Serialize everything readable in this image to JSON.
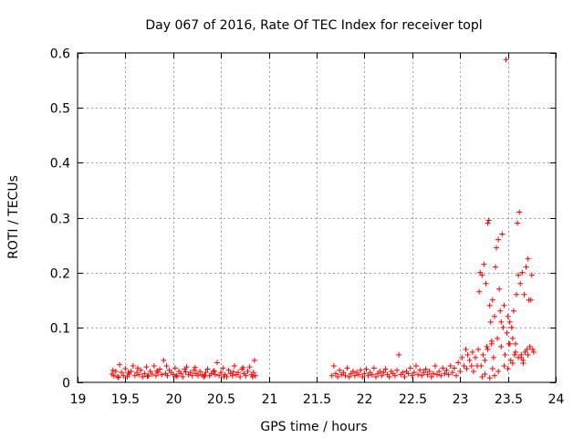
{
  "chart_data": {
    "type": "scatter",
    "title": "Day 067 of 2016, Rate Of TEC Index for receiver topl",
    "xlabel": "GPS time / hours",
    "ylabel": "ROTI / TECUs",
    "xlim": [
      19,
      24
    ],
    "ylim": [
      0,
      0.6
    ],
    "xticks": [
      19,
      19.5,
      20,
      20.5,
      21,
      21.5,
      22,
      22.5,
      23,
      23.5,
      24
    ],
    "xtick_labels": [
      "19",
      "19.5",
      "20",
      "20.5",
      "21",
      "21.5",
      "22",
      "22.5",
      "23",
      "23.5",
      "24"
    ],
    "yticks": [
      0,
      0.1,
      0.2,
      0.3,
      0.4,
      0.5,
      0.6
    ],
    "ytick_labels": [
      "0",
      "0.1",
      "0.2",
      "0.3",
      "0.4",
      "0.5",
      "0.6"
    ],
    "grid": true,
    "marker": "+",
    "color": "#ff0000",
    "series": [
      {
        "name": "ROTI",
        "points": [
          [
            19.36,
            0.015
          ],
          [
            19.38,
            0.012
          ],
          [
            19.4,
            0.02
          ],
          [
            19.42,
            0.01
          ],
          [
            19.44,
            0.032
          ],
          [
            19.46,
            0.018
          ],
          [
            19.48,
            0.012
          ],
          [
            19.5,
            0.025
          ],
          [
            19.52,
            0.01
          ],
          [
            19.54,
            0.015
          ],
          [
            19.56,
            0.02
          ],
          [
            19.58,
            0.03
          ],
          [
            19.6,
            0.012
          ],
          [
            19.62,
            0.018
          ],
          [
            19.64,
            0.014
          ],
          [
            19.66,
            0.022
          ],
          [
            19.68,
            0.01
          ],
          [
            19.7,
            0.016
          ],
          [
            19.72,
            0.028
          ],
          [
            19.74,
            0.012
          ],
          [
            19.76,
            0.02
          ],
          [
            19.78,
            0.015
          ],
          [
            19.8,
            0.03
          ],
          [
            19.82,
            0.012
          ],
          [
            19.84,
            0.018
          ],
          [
            19.86,
            0.024
          ],
          [
            19.88,
            0.014
          ],
          [
            19.9,
            0.04
          ],
          [
            19.92,
            0.016
          ],
          [
            19.94,
            0.012
          ],
          [
            19.96,
            0.022
          ],
          [
            19.98,
            0.018
          ],
          [
            20.0,
            0.014
          ],
          [
            20.02,
            0.026
          ],
          [
            20.04,
            0.012
          ],
          [
            20.06,
            0.02
          ],
          [
            20.08,
            0.016
          ],
          [
            20.1,
            0.01
          ],
          [
            20.12,
            0.024
          ],
          [
            20.14,
            0.028
          ],
          [
            20.16,
            0.014
          ],
          [
            20.18,
            0.018
          ],
          [
            20.2,
            0.012
          ],
          [
            20.22,
            0.022
          ],
          [
            20.24,
            0.016
          ],
          [
            20.26,
            0.012
          ],
          [
            20.28,
            0.02
          ],
          [
            20.3,
            0.014
          ],
          [
            20.32,
            0.01
          ],
          [
            20.34,
            0.018
          ],
          [
            20.36,
            0.024
          ],
          [
            20.38,
            0.012
          ],
          [
            20.4,
            0.016
          ],
          [
            20.42,
            0.02
          ],
          [
            20.44,
            0.014
          ],
          [
            20.46,
            0.036
          ],
          [
            20.48,
            0.012
          ],
          [
            20.5,
            0.018
          ],
          [
            20.52,
            0.026
          ],
          [
            20.54,
            0.014
          ],
          [
            20.56,
            0.01
          ],
          [
            20.58,
            0.022
          ],
          [
            20.6,
            0.016
          ],
          [
            20.62,
            0.012
          ],
          [
            20.64,
            0.03
          ],
          [
            20.66,
            0.014
          ],
          [
            20.68,
            0.018
          ],
          [
            20.7,
            0.01
          ],
          [
            20.72,
            0.024
          ],
          [
            20.74,
            0.016
          ],
          [
            20.76,
            0.012
          ],
          [
            20.78,
            0.02
          ],
          [
            20.8,
            0.028
          ],
          [
            20.82,
            0.014
          ],
          [
            20.84,
            0.018
          ],
          [
            20.85,
            0.04
          ],
          [
            20.86,
            0.012
          ],
          [
            19.37,
            0.022
          ],
          [
            19.43,
            0.009
          ],
          [
            19.53,
            0.018
          ],
          [
            19.63,
            0.026
          ],
          [
            19.73,
            0.011
          ],
          [
            19.83,
            0.021
          ],
          [
            19.93,
            0.03
          ],
          [
            20.03,
            0.011
          ],
          [
            20.13,
            0.019
          ],
          [
            20.23,
            0.027
          ],
          [
            20.33,
            0.012
          ],
          [
            20.43,
            0.021
          ],
          [
            20.53,
            0.01
          ],
          [
            20.63,
            0.019
          ],
          [
            20.73,
            0.027
          ],
          [
            20.83,
            0.01
          ],
          [
            21.66,
            0.012
          ],
          [
            21.68,
            0.03
          ],
          [
            21.7,
            0.016
          ],
          [
            21.72,
            0.01
          ],
          [
            21.74,
            0.022
          ],
          [
            21.76,
            0.014
          ],
          [
            21.78,
            0.018
          ],
          [
            21.8,
            0.012
          ],
          [
            21.82,
            0.026
          ],
          [
            21.84,
            0.01
          ],
          [
            21.86,
            0.016
          ],
          [
            21.88,
            0.02
          ],
          [
            21.9,
            0.012
          ],
          [
            21.92,
            0.018
          ],
          [
            21.94,
            0.014
          ],
          [
            21.96,
            0.022
          ],
          [
            21.98,
            0.01
          ],
          [
            22.0,
            0.016
          ],
          [
            22.02,
            0.024
          ],
          [
            22.04,
            0.012
          ],
          [
            22.06,
            0.018
          ],
          [
            22.08,
            0.014
          ],
          [
            22.1,
            0.026
          ],
          [
            22.12,
            0.01
          ],
          [
            22.14,
            0.016
          ],
          [
            22.16,
            0.02
          ],
          [
            22.18,
            0.012
          ],
          [
            22.2,
            0.018
          ],
          [
            22.22,
            0.024
          ],
          [
            22.24,
            0.014
          ],
          [
            22.26,
            0.01
          ],
          [
            22.28,
            0.02
          ],
          [
            22.3,
            0.016
          ],
          [
            22.32,
            0.012
          ],
          [
            22.34,
            0.022
          ],
          [
            22.36,
            0.05
          ],
          [
            22.38,
            0.014
          ],
          [
            22.4,
            0.018
          ],
          [
            22.42,
            0.01
          ],
          [
            22.44,
            0.02
          ],
          [
            22.46,
            0.016
          ],
          [
            22.48,
            0.026
          ],
          [
            22.5,
            0.012
          ],
          [
            22.52,
            0.018
          ],
          [
            22.54,
            0.03
          ],
          [
            22.56,
            0.014
          ],
          [
            22.58,
            0.022
          ],
          [
            22.6,
            0.012
          ],
          [
            22.62,
            0.018
          ],
          [
            22.64,
            0.024
          ],
          [
            22.66,
            0.014
          ],
          [
            22.68,
            0.02
          ],
          [
            22.7,
            0.01
          ],
          [
            22.72,
            0.016
          ],
          [
            22.74,
            0.03
          ],
          [
            22.76,
            0.014
          ],
          [
            22.78,
            0.02
          ],
          [
            22.8,
            0.012
          ],
          [
            22.82,
            0.026
          ],
          [
            22.84,
            0.016
          ],
          [
            22.86,
            0.022
          ],
          [
            22.88,
            0.014
          ],
          [
            22.9,
            0.03
          ],
          [
            22.92,
            0.018
          ],
          [
            22.94,
            0.026
          ],
          [
            22.96,
            0.012
          ],
          [
            22.98,
            0.036
          ],
          [
            23.0,
            0.02
          ],
          [
            23.02,
            0.045
          ],
          [
            23.04,
            0.03
          ],
          [
            23.06,
            0.06
          ],
          [
            23.07,
            0.025
          ],
          [
            23.08,
            0.05
          ],
          [
            23.1,
            0.04
          ],
          [
            23.12,
            0.03
          ],
          [
            23.13,
            0.055
          ],
          [
            23.14,
            0.02
          ],
          [
            23.16,
            0.045
          ],
          [
            23.18,
            0.03
          ],
          [
            23.19,
            0.06
          ],
          [
            23.2,
            0.165
          ],
          [
            23.21,
            0.2
          ],
          [
            23.22,
            0.03
          ],
          [
            23.23,
            0.195
          ],
          [
            23.24,
            0.05
          ],
          [
            23.25,
            0.215
          ],
          [
            23.26,
            0.04
          ],
          [
            23.27,
            0.18
          ],
          [
            23.28,
            0.065
          ],
          [
            23.29,
            0.29
          ],
          [
            23.3,
            0.295
          ],
          [
            23.31,
            0.14
          ],
          [
            23.32,
            0.11
          ],
          [
            23.33,
            0.07
          ],
          [
            23.34,
            0.15
          ],
          [
            23.35,
            0.045
          ],
          [
            23.36,
            0.12
          ],
          [
            23.37,
            0.21
          ],
          [
            23.38,
            0.245
          ],
          [
            23.39,
            0.08
          ],
          [
            23.4,
            0.26
          ],
          [
            23.41,
            0.17
          ],
          [
            23.42,
            0.13
          ],
          [
            23.43,
            0.11
          ],
          [
            23.44,
            0.27
          ],
          [
            23.45,
            0.1
          ],
          [
            23.46,
            0.14
          ],
          [
            23.47,
            0.05
          ],
          [
            23.48,
            0.588
          ],
          [
            23.49,
            0.09
          ],
          [
            23.5,
            0.12
          ],
          [
            23.51,
            0.07
          ],
          [
            23.52,
            0.11
          ],
          [
            23.53,
            0.04
          ],
          [
            23.54,
            0.1
          ],
          [
            23.55,
            0.08
          ],
          [
            23.56,
            0.13
          ],
          [
            23.57,
            0.05
          ],
          [
            23.58,
            0.07
          ],
          [
            23.59,
            0.16
          ],
          [
            23.6,
            0.29
          ],
          [
            23.61,
            0.195
          ],
          [
            23.62,
            0.31
          ],
          [
            23.63,
            0.18
          ],
          [
            23.64,
            0.05
          ],
          [
            23.65,
            0.2
          ],
          [
            23.66,
            0.04
          ],
          [
            23.67,
            0.16
          ],
          [
            23.68,
            0.055
          ],
          [
            23.69,
            0.21
          ],
          [
            23.7,
            0.06
          ],
          [
            23.71,
            0.225
          ],
          [
            23.72,
            0.15
          ],
          [
            23.73,
            0.065
          ],
          [
            23.74,
            0.15
          ],
          [
            23.75,
            0.195
          ],
          [
            23.76,
            0.06
          ],
          [
            23.77,
            0.055
          ],
          [
            23.23,
            0.01
          ],
          [
            23.26,
            0.015
          ],
          [
            23.31,
            0.008
          ],
          [
            23.34,
            0.025
          ],
          [
            23.36,
            0.012
          ],
          [
            23.4,
            0.02
          ],
          [
            23.46,
            0.03
          ],
          [
            23.5,
            0.025
          ],
          [
            23.55,
            0.035
          ],
          [
            23.61,
            0.045
          ],
          [
            23.66,
            0.035
          ],
          [
            23.71,
            0.05
          ],
          [
            23.29,
            0.06
          ],
          [
            23.33,
            0.075
          ],
          [
            23.43,
            0.065
          ],
          [
            23.52,
            0.07
          ],
          [
            23.58,
            0.055
          ],
          [
            23.64,
            0.045
          ]
        ]
      }
    ]
  }
}
